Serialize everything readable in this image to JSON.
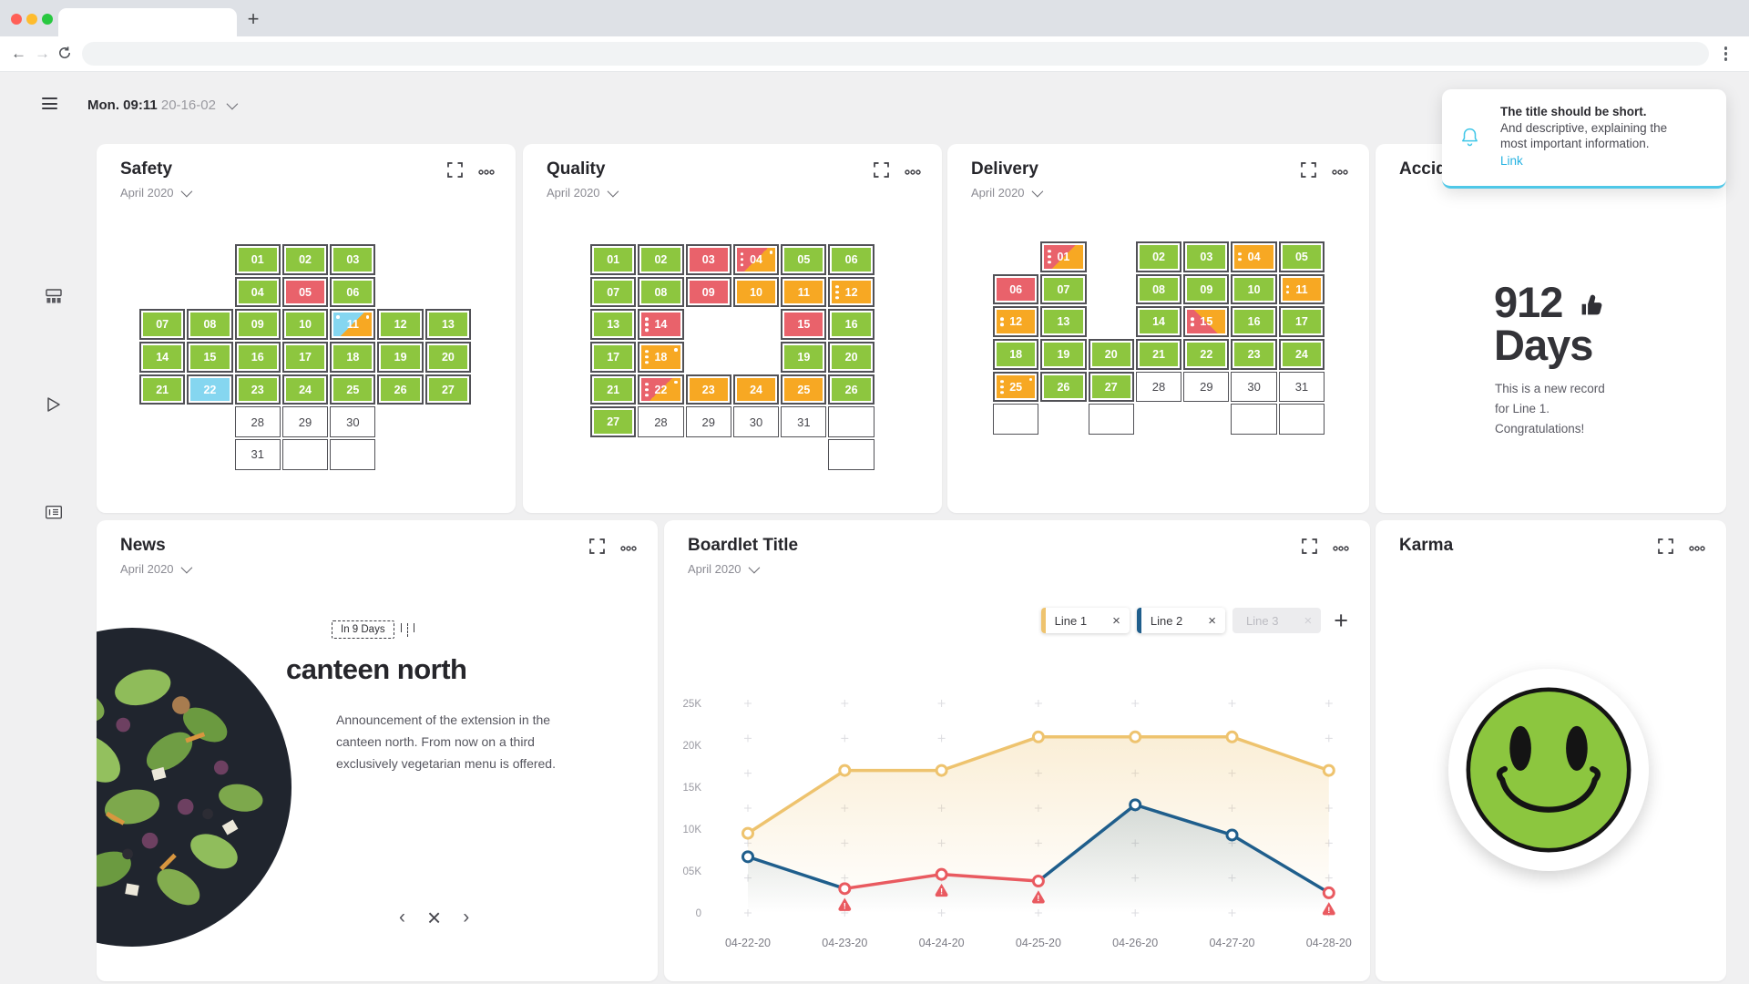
{
  "browser": {
    "tab_title": "",
    "url": ""
  },
  "page_header": {
    "time": "Mon. 09:11",
    "date": "20-16-02"
  },
  "palette": {
    "green": "#8dc63f",
    "red": "#e9626b",
    "orange": "#f7a823",
    "blue": "#85d6f0",
    "cell_border": "#515156",
    "cyan": "#3fc6e8",
    "link": "#25b2e2"
  },
  "sidebar": {
    "icons": [
      "hamburger-menu",
      "board-icon",
      "play-icon",
      "card-icon"
    ]
  },
  "widgets": {
    "safety": {
      "title": "Safety",
      "subtitle": "April 2020",
      "cols": 7,
      "grid": [
        [
          null,
          null,
          {
            "d": "01",
            "c": "g"
          },
          {
            "d": "02",
            "c": "g"
          },
          {
            "d": "03",
            "c": "g"
          },
          null,
          null
        ],
        [
          null,
          null,
          {
            "d": "04",
            "c": "g"
          },
          {
            "d": "05",
            "c": "r"
          },
          {
            "d": "06",
            "c": "g"
          },
          null,
          null
        ],
        [
          {
            "d": "07",
            "c": "g"
          },
          {
            "d": "08",
            "c": "g"
          },
          {
            "d": "09",
            "c": "g"
          },
          {
            "d": "10",
            "c": "g"
          },
          {
            "d": "11",
            "c": "bo",
            "dtl": 1,
            "dtr": 1
          },
          {
            "d": "12",
            "c": "g"
          },
          {
            "d": "13",
            "c": "g"
          }
        ],
        [
          {
            "d": "14",
            "c": "g"
          },
          {
            "d": "15",
            "c": "g"
          },
          {
            "d": "16",
            "c": "g"
          },
          {
            "d": "17",
            "c": "g"
          },
          {
            "d": "18",
            "c": "g"
          },
          {
            "d": "19",
            "c": "g"
          },
          {
            "d": "20",
            "c": "g"
          }
        ],
        [
          {
            "d": "21",
            "c": "g"
          },
          {
            "d": "22",
            "c": "b"
          },
          {
            "d": "23",
            "c": "g"
          },
          {
            "d": "24",
            "c": "g"
          },
          {
            "d": "25",
            "c": "g"
          },
          {
            "d": "26",
            "c": "g"
          },
          {
            "d": "27",
            "c": "g"
          }
        ],
        [
          null,
          null,
          {
            "d": "28",
            "c": "w"
          },
          {
            "d": "29",
            "c": "w"
          },
          {
            "d": "30",
            "c": "w"
          },
          null,
          null
        ],
        [
          null,
          null,
          {
            "d": "31",
            "c": "w"
          },
          {
            "c": "e"
          },
          {
            "c": "e"
          },
          null,
          null
        ]
      ]
    },
    "quality": {
      "title": "Quality",
      "subtitle": "April 2020",
      "cols": 6,
      "grid": [
        [
          {
            "d": "01",
            "c": "g"
          },
          {
            "d": "02",
            "c": "g"
          },
          {
            "d": "03",
            "c": "r"
          },
          {
            "d": "04",
            "c": "ro",
            "dots": 3,
            "dtr": 1
          },
          {
            "d": "05",
            "c": "g"
          },
          {
            "d": "06",
            "c": "g"
          }
        ],
        [
          {
            "d": "07",
            "c": "g"
          },
          {
            "d": "08",
            "c": "g"
          },
          {
            "d": "09",
            "c": "r"
          },
          {
            "d": "10",
            "c": "o"
          },
          {
            "d": "11",
            "c": "o"
          },
          {
            "d": "12",
            "c": "o",
            "dots": 3
          }
        ],
        [
          {
            "d": "13",
            "c": "g"
          },
          {
            "d": "14",
            "c": "r",
            "dots": 3
          },
          null,
          null,
          {
            "d": "15",
            "c": "r"
          },
          {
            "d": "16",
            "c": "g"
          }
        ],
        [
          {
            "d": "17",
            "c": "g"
          },
          {
            "d": "18",
            "c": "o",
            "dots": 3,
            "dtr": 1
          },
          null,
          null,
          {
            "d": "19",
            "c": "g"
          },
          {
            "d": "20",
            "c": "g"
          }
        ],
        [
          {
            "d": "21",
            "c": "g"
          },
          {
            "d": "22",
            "c": "ro",
            "dots": 3,
            "dtr": 1
          },
          {
            "d": "23",
            "c": "o"
          },
          {
            "d": "24",
            "c": "o"
          },
          {
            "d": "25",
            "c": "o"
          },
          {
            "d": "26",
            "c": "g"
          }
        ],
        [
          {
            "d": "27",
            "c": "g"
          },
          {
            "d": "28",
            "c": "w"
          },
          {
            "d": "29",
            "c": "w"
          },
          {
            "d": "30",
            "c": "w"
          },
          {
            "d": "31",
            "c": "w"
          },
          {
            "c": "e"
          }
        ],
        [
          null,
          null,
          null,
          null,
          null,
          {
            "c": "e"
          }
        ]
      ]
    },
    "delivery": {
      "title": "Delivery",
      "subtitle": "April 2020",
      "cols": 7,
      "grid": [
        [
          null,
          {
            "d": "01",
            "c": "ro",
            "dots": 3
          },
          null,
          {
            "d": "02",
            "c": "g"
          },
          {
            "d": "03",
            "c": "g"
          },
          {
            "d": "04",
            "c": "o",
            "dots": 2
          },
          {
            "d": "05",
            "c": "g"
          }
        ],
        [
          {
            "d": "06",
            "c": "r"
          },
          {
            "d": "07",
            "c": "g"
          },
          null,
          {
            "d": "08",
            "c": "g"
          },
          {
            "d": "09",
            "c": "g"
          },
          {
            "d": "10",
            "c": "g"
          },
          {
            "d": "11",
            "c": "o",
            "dots": 2
          }
        ],
        [
          {
            "d": "12",
            "c": "o",
            "dots": 2
          },
          {
            "d": "13",
            "c": "g"
          },
          null,
          {
            "d": "14",
            "c": "g"
          },
          {
            "d": "15",
            "c": "ro45",
            "dots": 2
          },
          {
            "d": "16",
            "c": "g"
          },
          {
            "d": "17",
            "c": "g"
          }
        ],
        [
          {
            "d": "18",
            "c": "g"
          },
          {
            "d": "19",
            "c": "g"
          },
          {
            "d": "20",
            "c": "g"
          },
          {
            "d": "21",
            "c": "g"
          },
          {
            "d": "22",
            "c": "g"
          },
          {
            "d": "23",
            "c": "g"
          },
          {
            "d": "24",
            "c": "g"
          }
        ],
        [
          {
            "d": "25",
            "c": "o",
            "dots": 3,
            "dtr": 1
          },
          {
            "d": "26",
            "c": "g"
          },
          {
            "d": "27",
            "c": "g"
          },
          {
            "d": "28",
            "c": "w"
          },
          {
            "d": "29",
            "c": "w"
          },
          {
            "d": "30",
            "c": "w"
          },
          {
            "d": "31",
            "c": "w"
          }
        ],
        [
          {
            "c": "e"
          },
          null,
          {
            "c": "e"
          },
          null,
          null,
          {
            "c": "e"
          },
          {
            "c": "e"
          }
        ]
      ]
    },
    "accidents": {
      "title": "Accidents",
      "value": "912",
      "unit": "Days",
      "message": "This is a new record for Line 1. Congratulations!"
    },
    "news": {
      "title": "News",
      "subtitle": "April 2020",
      "badge": "In 9 Days",
      "headline": "canteen north",
      "body": "Announcement of the extension in the canteen north. From now on a third exclusively vegetarian menu is offered."
    },
    "boardlet": {
      "title": "Boardlet Title",
      "subtitle": "April 2020",
      "legend": [
        {
          "label": "Line 1",
          "color": "#eec36e",
          "enabled": true
        },
        {
          "label": "Line 2",
          "color": "#1f5e8c",
          "enabled": true
        },
        {
          "label": "Line 3",
          "color": "",
          "enabled": false
        }
      ]
    },
    "karma": {
      "title": "Karma"
    }
  },
  "notification": {
    "title": "The title should be short.",
    "line1": "And descriptive, explaining the",
    "line2": "most important information.",
    "link": "Link"
  },
  "chart_data": {
    "type": "line",
    "x": [
      "04-22-20",
      "04-23-20",
      "04-24-20",
      "04-25-20",
      "04-26-20",
      "04-27-20",
      "04-28-20"
    ],
    "series": [
      {
        "name": "Line 1",
        "color": "#eec36e",
        "values": [
          9500,
          17000,
          17000,
          21000,
          21000,
          21000,
          17000
        ]
      },
      {
        "name": "Line 2",
        "color": "#1f5e8c",
        "alarm_color": "#e95a60",
        "values": [
          6700,
          2900,
          4600,
          3800,
          12900,
          9300,
          2400
        ],
        "alarm_indices": [
          1,
          2,
          3,
          6
        ]
      }
    ],
    "yticks": [
      {
        "label": "0",
        "value": 0
      },
      {
        "label": "05K",
        "value": 5000
      },
      {
        "label": "10K",
        "value": 10000
      },
      {
        "label": "15K",
        "value": 15000
      },
      {
        "label": "20K",
        "value": 20000
      },
      {
        "label": "25K",
        "value": 25000
      }
    ],
    "ylim": [
      0,
      25000
    ],
    "legend_position": "top-right",
    "grid": "plus-markers"
  }
}
